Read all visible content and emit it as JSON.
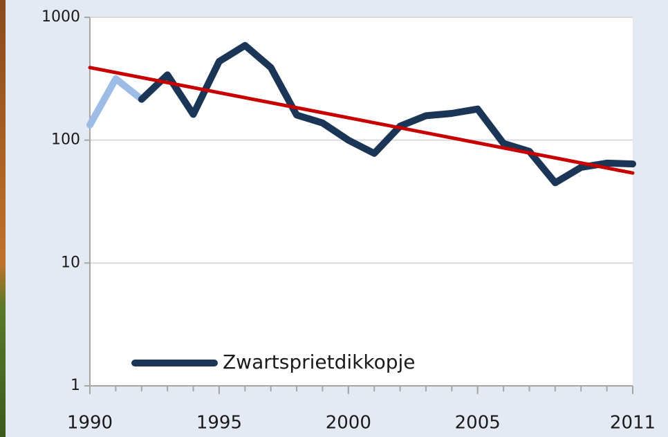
{
  "chart_data": {
    "type": "line",
    "x": [
      1990,
      1991,
      1992,
      1993,
      1994,
      1995,
      1996,
      1997,
      1998,
      1999,
      2000,
      2001,
      2002,
      2003,
      2004,
      2005,
      2006,
      2007,
      2008,
      2009,
      2010,
      2011
    ],
    "series": [
      {
        "color": "#9dbde6",
        "values": [
          133,
          316,
          215,
          null,
          null,
          null,
          null,
          null,
          null,
          null,
          null,
          null,
          null,
          null,
          null,
          null,
          null,
          null,
          null,
          null,
          null,
          null
        ]
      },
      {
        "name": "Zwartsprietdikkopje",
        "color": "#1b3556",
        "values": [
          null,
          null,
          215,
          340,
          162,
          437,
          590,
          390,
          160,
          138,
          100,
          78,
          130,
          158,
          165,
          179,
          94,
          81,
          45,
          60,
          65,
          64
        ]
      }
    ],
    "trend": {
      "color": "#c80000",
      "x": [
        1990,
        2011
      ],
      "values": [
        390,
        54
      ]
    },
    "xlim": [
      1990,
      2011
    ],
    "xticks": [
      1990,
      1995,
      2000,
      2005,
      2011
    ],
    "ylim": [
      1,
      1000
    ],
    "yticks": [
      1,
      10,
      100,
      1000
    ],
    "log_y": true,
    "grid": true,
    "legend": "lower left"
  }
}
